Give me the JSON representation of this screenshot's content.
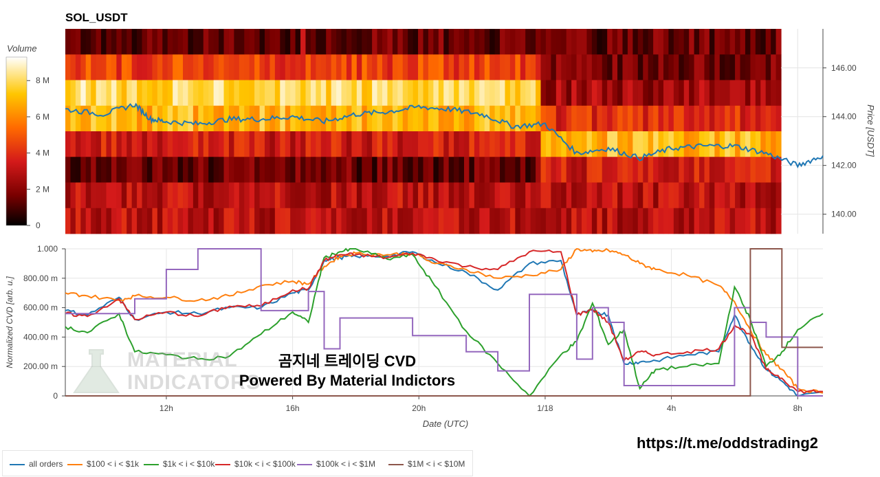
{
  "title": "SOL_USDT",
  "colorbar": {
    "title": "Volume",
    "ticks": [
      "0",
      "2 M",
      "4 M",
      "6 M",
      "8 M"
    ],
    "tick_values": [
      0,
      2,
      4,
      6,
      8
    ],
    "max": 9.3
  },
  "price_axis": {
    "label": "Price [USDT]",
    "ticks": [
      "140.00",
      "142.00",
      "144.00",
      "146.00"
    ],
    "tick_values": [
      140,
      142,
      144,
      146
    ],
    "ylim": [
      139.2,
      147.6
    ]
  },
  "cvd_axis": {
    "label": "Normalized CVD [arb. u.]",
    "ticks": [
      "0",
      "200.00 m",
      "400.00 m",
      "600.00 m",
      "800.00 m",
      "1.000"
    ],
    "tick_values": [
      0,
      0.2,
      0.4,
      0.6,
      0.8,
      1.0
    ],
    "ylim": [
      0,
      1.0
    ]
  },
  "x_axis": {
    "label": "Date (UTC)",
    "ticks": [
      "12h",
      "16h",
      "20h",
      "1/18",
      "4h",
      "8h"
    ],
    "tick_hours": [
      12,
      16,
      20,
      24,
      28,
      32
    ],
    "range_hours": [
      8.8,
      32.8
    ]
  },
  "watermark": {
    "line1": "곰지네 트레이딩 CVD",
    "line2": "Powered By Material Indictors",
    "logo_line1": "MATERIAL",
    "logo_line2": "INDICATORS"
  },
  "telegram_link": "https://t.me/oddstrading2",
  "colors": {
    "all_orders": "#1f77b4",
    "s100_1k": "#ff7f0e",
    "s1k_10k": "#2ca02c",
    "s10k_100k": "#d62728",
    "s100k_1m": "#9467bd",
    "s1m_10m": "#8c564b"
  },
  "chart_data": [
    {
      "type": "heatmap",
      "title": "SOL_USDT",
      "ylabel": "Price [USDT]",
      "colorbar_label": "Volume",
      "price_bands": [
        146.5,
        145.5,
        144.5,
        143.5,
        142.5,
        141.5,
        140.5,
        139.5
      ],
      "band_volume_M_first_segment": [
        1.5,
        4.5,
        8.0,
        7.0,
        3.5,
        1.5,
        3.0,
        3.0
      ],
      "band_volume_M_last_segment": [
        1.5,
        1.8,
        2.5,
        4.0,
        7.0,
        3.5,
        3.0,
        3.0
      ],
      "price_line": {
        "name": "price",
        "x_hours": [
          8.8,
          10.0,
          11.0,
          11.5,
          12.0,
          13.0,
          14.0,
          15.0,
          16.0,
          17.0,
          18.0,
          19.0,
          20.0,
          21.0,
          22.0,
          23.0,
          24.0,
          25.0,
          26.0,
          27.0,
          28.0,
          29.0,
          30.0,
          31.0,
          32.0,
          32.8
        ],
        "y": [
          144.3,
          144.1,
          144.5,
          143.9,
          143.8,
          143.7,
          143.9,
          143.9,
          144.0,
          143.8,
          144.1,
          144.2,
          144.4,
          144.3,
          144.1,
          143.6,
          143.7,
          142.5,
          142.7,
          142.3,
          142.7,
          142.8,
          142.8,
          142.5,
          142.0,
          142.4
        ]
      }
    },
    {
      "type": "line",
      "xlabel": "Date (UTC)",
      "ylabel": "Normalized CVD [arb. u.]",
      "x_hours": [
        8.8,
        9.5,
        10.5,
        11.0,
        12.0,
        13.0,
        14.0,
        15.0,
        16.0,
        16.5,
        17.0,
        17.5,
        18.0,
        19.0,
        19.8,
        20.5,
        21.5,
        22.5,
        23.5,
        24.5,
        25.0,
        25.5,
        26.0,
        26.5,
        27.0,
        27.5,
        28.5,
        29.5,
        30.0,
        30.5,
        31.0,
        31.5,
        32.0,
        32.8
      ],
      "series": [
        {
          "name": "all orders",
          "values": [
            0.58,
            0.55,
            0.67,
            0.52,
            0.57,
            0.56,
            0.6,
            0.6,
            0.7,
            0.72,
            0.92,
            0.94,
            0.95,
            0.95,
            0.98,
            0.91,
            0.84,
            0.72,
            0.9,
            0.92,
            0.55,
            0.58,
            0.55,
            0.22,
            0.23,
            0.24,
            0.28,
            0.3,
            0.55,
            0.35,
            0.18,
            0.1,
            0.0,
            0.02
          ]
        },
        {
          "name": "$100 < i < $1k",
          "values": [
            0.7,
            0.68,
            0.65,
            0.68,
            0.67,
            0.65,
            0.68,
            0.75,
            0.78,
            0.76,
            0.88,
            0.95,
            0.97,
            0.96,
            0.97,
            0.9,
            0.86,
            0.8,
            0.82,
            0.86,
            1.0,
            0.98,
            0.99,
            0.96,
            0.9,
            0.86,
            0.82,
            0.75,
            0.64,
            0.45,
            0.28,
            0.18,
            0.05,
            0.02
          ]
        },
        {
          "name": "$1k < i < $10k",
          "values": [
            0.47,
            0.43,
            0.56,
            0.3,
            0.28,
            0.25,
            0.27,
            0.42,
            0.57,
            0.5,
            0.94,
            0.98,
            1.0,
            0.93,
            0.96,
            0.75,
            0.44,
            0.22,
            0.0,
            0.28,
            0.37,
            0.63,
            0.35,
            0.45,
            0.05,
            0.18,
            0.2,
            0.22,
            0.74,
            0.52,
            0.2,
            0.3,
            0.45,
            0.56
          ]
        },
        {
          "name": "$10k < i < $100k",
          "values": [
            0.56,
            0.54,
            0.66,
            0.52,
            0.57,
            0.54,
            0.61,
            0.61,
            0.72,
            0.73,
            0.92,
            0.96,
            0.96,
            0.94,
            0.97,
            0.93,
            0.88,
            0.86,
            0.98,
            0.98,
            0.55,
            0.59,
            0.5,
            0.24,
            0.3,
            0.28,
            0.3,
            0.32,
            0.48,
            0.42,
            0.18,
            0.12,
            0.03,
            0.03
          ]
        },
        {
          "name": "$100k < i < $1M",
          "values": [
            0.56,
            0.56,
            0.56,
            0.66,
            0.86,
            1.0,
            1.0,
            0.58,
            0.58,
            0.71,
            0.32,
            0.53,
            0.53,
            0.53,
            0.41,
            0.41,
            0.3,
            0.17,
            0.69,
            0.69,
            0.25,
            0.6,
            0.5,
            0.07,
            0.07,
            0.07,
            0.07,
            0.07,
            0.6,
            0.5,
            0.4,
            0.4,
            0.0,
            0.0
          ]
        },
        {
          "name": "$1M < i < $10M",
          "values": [
            0.0,
            0.0,
            0.0,
            0.0,
            0.0,
            0.0,
            0.0,
            0.0,
            0.0,
            0.0,
            0.0,
            0.0,
            0.0,
            0.0,
            0.0,
            0.0,
            0.0,
            0.0,
            0.0,
            0.0,
            0.0,
            0.0,
            0.0,
            0.0,
            0.0,
            0.0,
            0.0,
            0.0,
            0.0,
            1.0,
            1.0,
            0.33,
            0.33,
            0.33
          ]
        }
      ],
      "legend_position": "bottom-left"
    }
  ],
  "legend": [
    {
      "label": "all orders",
      "color": "#1f77b4"
    },
    {
      "label": "$100 < i < $1k",
      "color": "#ff7f0e"
    },
    {
      "label": "$1k < i < $10k",
      "color": "#2ca02c"
    },
    {
      "label": "$10k < i < $100k",
      "color": "#d62728"
    },
    {
      "label": "$100k < i < $1M",
      "color": "#9467bd"
    },
    {
      "label": "$1M < i < $10M",
      "color": "#8c564b"
    }
  ]
}
